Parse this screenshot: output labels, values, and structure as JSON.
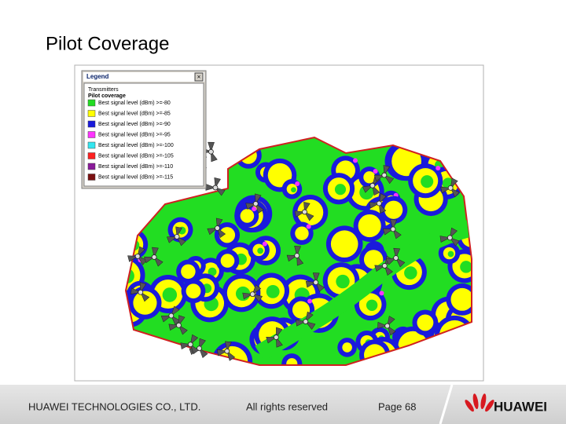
{
  "slide": {
    "title": "Pilot Coverage"
  },
  "legend": {
    "title": "Legend",
    "group": "Transmitters",
    "layer": "Pilot coverage",
    "entries": [
      {
        "label": "Best signal level (dBm) >=-80",
        "color": "#22dd22"
      },
      {
        "label": "Best signal level (dBm) >=-85",
        "color": "#ffff00"
      },
      {
        "label": "Best signal level (dBm) >=-90",
        "color": "#1a1adc"
      },
      {
        "label": "Best signal level (dBm) >=-95",
        "color": "#ff33ff"
      },
      {
        "label": "Best signal level (dBm) >=-100",
        "color": "#33e6f0"
      },
      {
        "label": "Best signal level (dBm) >=-105",
        "color": "#ff2020"
      },
      {
        "label": "Best signal level (dBm) >=-110",
        "color": "#8a1a9a"
      },
      {
        "label": "Best signal level (dBm) >=-115",
        "color": "#7a1010"
      }
    ]
  },
  "footer": {
    "company": "HUAWEI TECHNOLOGIES CO., LTD.",
    "rights": "All rights reserved",
    "page": "Page 68",
    "brand": "HUAWEI"
  }
}
